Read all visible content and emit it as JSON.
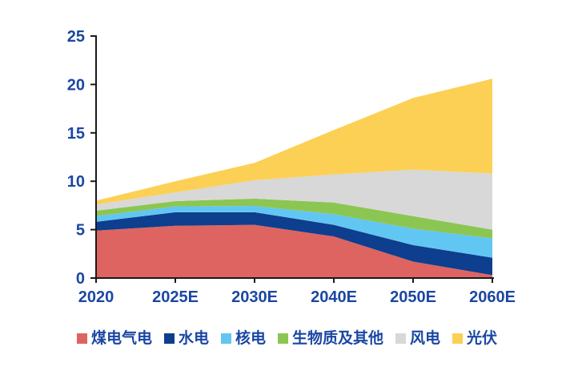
{
  "chart_data": {
    "type": "area",
    "stacked": true,
    "title": "",
    "xlabel": "",
    "ylabel": "",
    "categories": [
      "2020",
      "2025E",
      "2030E",
      "2040E",
      "2050E",
      "2060E"
    ],
    "series": [
      {
        "id": "coal-gas",
        "name": "煤电气电",
        "color": "#DE6461",
        "values": [
          4.9,
          5.4,
          5.5,
          4.3,
          1.7,
          0.3
        ]
      },
      {
        "id": "hydro",
        "name": "水电",
        "color": "#0E3E8E",
        "values": [
          0.9,
          1.4,
          1.3,
          1.2,
          1.7,
          1.8
        ]
      },
      {
        "id": "nuclear",
        "name": "核电",
        "color": "#62C6F2",
        "values": [
          0.6,
          0.6,
          0.65,
          1.1,
          1.7,
          2.0
        ]
      },
      {
        "id": "biomass-other",
        "name": "生物质及其他",
        "color": "#8CC652",
        "values": [
          0.55,
          0.55,
          0.75,
          1.2,
          1.3,
          0.9
        ]
      },
      {
        "id": "wind",
        "name": "风电",
        "color": "#D8D8D8",
        "values": [
          0.65,
          0.9,
          1.9,
          2.9,
          4.8,
          5.8
        ]
      },
      {
        "id": "solar",
        "name": "光伏",
        "color": "#FCD055",
        "values": [
          0.4,
          1.15,
          1.8,
          4.6,
          7.4,
          9.8
        ]
      }
    ],
    "totals": [
      8.0,
      10.0,
      11.9,
      15.3,
      18.6,
      20.6
    ],
    "ylim": [
      0,
      25
    ],
    "yticks": [
      0,
      5,
      10,
      15,
      20,
      25
    ],
    "grid": false,
    "legend_position": "bottom"
  },
  "style": {
    "axis_color": "#1A1A1A",
    "label_color": "#1B47A3",
    "background": "#FFFFFF"
  }
}
